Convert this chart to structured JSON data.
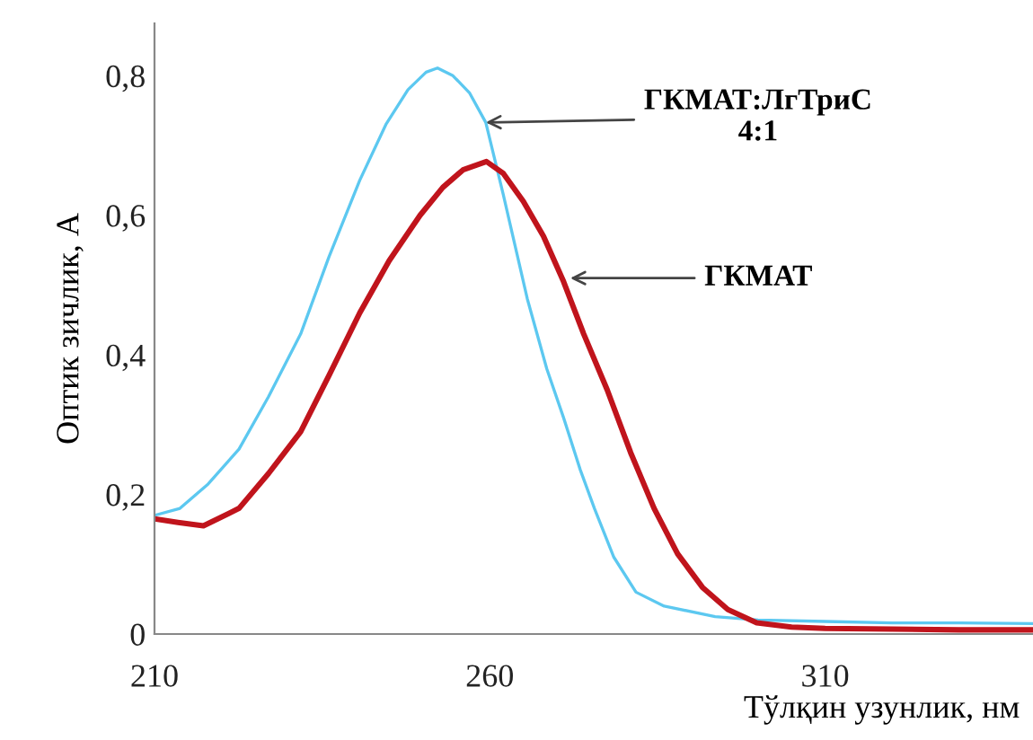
{
  "chart_data": {
    "type": "line",
    "xlabel": "Тўлқин узунлик, нм",
    "ylabel": "Оптик зичлик, А",
    "xlim": [
      210,
      341
    ],
    "xticks": [
      210,
      260,
      310
    ],
    "ylim": [
      0,
      0.875
    ],
    "yticks": [
      {
        "value": 0,
        "label": "0"
      },
      {
        "value": 0.2,
        "label": "0,2"
      },
      {
        "value": 0.4,
        "label": "0,4"
      },
      {
        "value": 0.6,
        "label": "0,6"
      },
      {
        "value": 0.8,
        "label": "0,8"
      }
    ],
    "grid": false,
    "legend": false,
    "marker": "none",
    "line_style": "solid",
    "series": [
      {
        "color": "#5cc8f0",
        "x": [
          210,
          213.8,
          218,
          222.6,
          227,
          231.8,
          236,
          240.6,
          244.5,
          247.8,
          250.5,
          252.2,
          254.5,
          257,
          259.4,
          262,
          265.6,
          268.5,
          271,
          273.5,
          275.6,
          278.5,
          281.8,
          286,
          293.6,
          300,
          310,
          320,
          330,
          341
        ],
        "values": [
          0.17,
          0.18,
          0.215,
          0.265,
          0.34,
          0.43,
          0.54,
          0.65,
          0.73,
          0.78,
          0.805,
          0.811,
          0.8,
          0.775,
          0.733,
          0.63,
          0.48,
          0.38,
          0.31,
          0.235,
          0.18,
          0.11,
          0.06,
          0.04,
          0.025,
          0.02,
          0.018,
          0.016,
          0.016,
          0.015
        ]
      },
      {
        "color": "#c0141c",
        "x": [
          210,
          213.5,
          217.3,
          222.6,
          227,
          231.8,
          236,
          240.6,
          245,
          249.6,
          253,
          256,
          259.5,
          262,
          265,
          268,
          271,
          274,
          277.5,
          281,
          284.5,
          288,
          291.7,
          295.5,
          299.8,
          305,
          310,
          320,
          330,
          341
        ],
        "values": [
          0.165,
          0.16,
          0.155,
          0.18,
          0.23,
          0.29,
          0.37,
          0.46,
          0.535,
          0.6,
          0.64,
          0.665,
          0.677,
          0.66,
          0.62,
          0.57,
          0.505,
          0.43,
          0.35,
          0.26,
          0.18,
          0.115,
          0.067,
          0.035,
          0.016,
          0.01,
          0.008,
          0.007,
          0.006,
          0.006
        ]
      }
    ],
    "annotations": [
      {
        "text": "ГКМАТ:ЛгТриС\n4:1",
        "x": 259.4,
        "y": 0.733
      },
      {
        "text": "ГКМАТ",
        "x": 272,
        "y": 0.51
      }
    ]
  }
}
